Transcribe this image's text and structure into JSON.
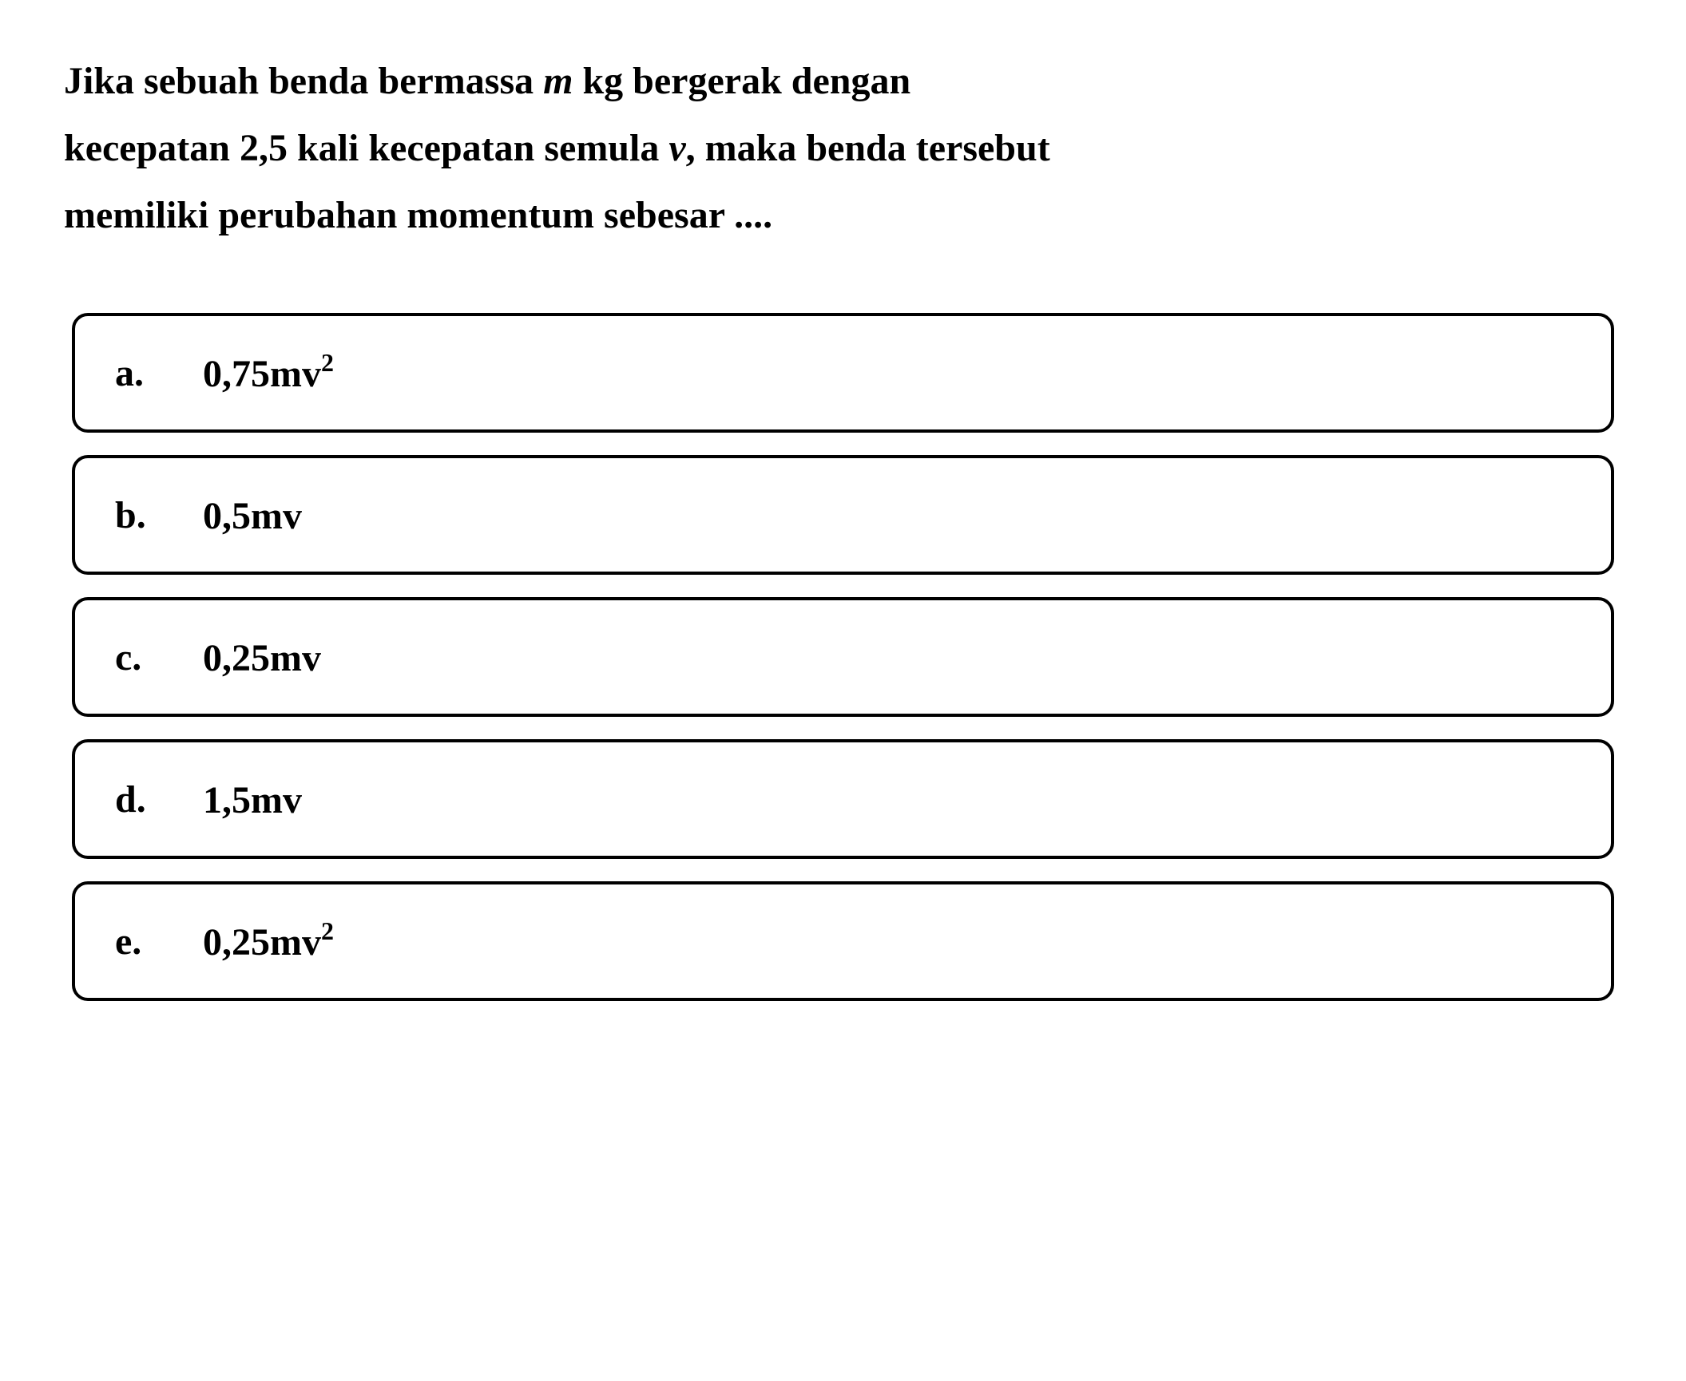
{
  "question": {
    "line1_part1": "Jika sebuah benda bermassa ",
    "line1_italic": "m",
    "line1_part2": " kg bergerak dengan",
    "line2_part1": "kecepatan 2,5 kali kecepatan semula ",
    "line2_italic": "v",
    "line2_part2": ", maka benda tersebut",
    "line3": "memiliki perubahan momentum sebesar ...."
  },
  "options": [
    {
      "letter": "a.",
      "value": "0,75mv",
      "superscript": "2"
    },
    {
      "letter": "b.",
      "value": "0,5mv",
      "superscript": ""
    },
    {
      "letter": "c.",
      "value": "0,25mv",
      "superscript": ""
    },
    {
      "letter": "d.",
      "value": "1,5mv",
      "superscript": ""
    },
    {
      "letter": "e.",
      "value": "0,25mv",
      "superscript": "2"
    }
  ],
  "styling": {
    "background_color": "#ffffff",
    "text_color": "#000000",
    "border_color": "#000000",
    "border_width": 4,
    "border_radius": 20,
    "question_fontsize": 48,
    "option_fontsize": 48,
    "superscript_fontsize": 32,
    "font_weight": "bold",
    "line_height": 1.75,
    "option_gap": 28,
    "option_padding_vertical": 42,
    "option_padding_horizontal": 50
  }
}
